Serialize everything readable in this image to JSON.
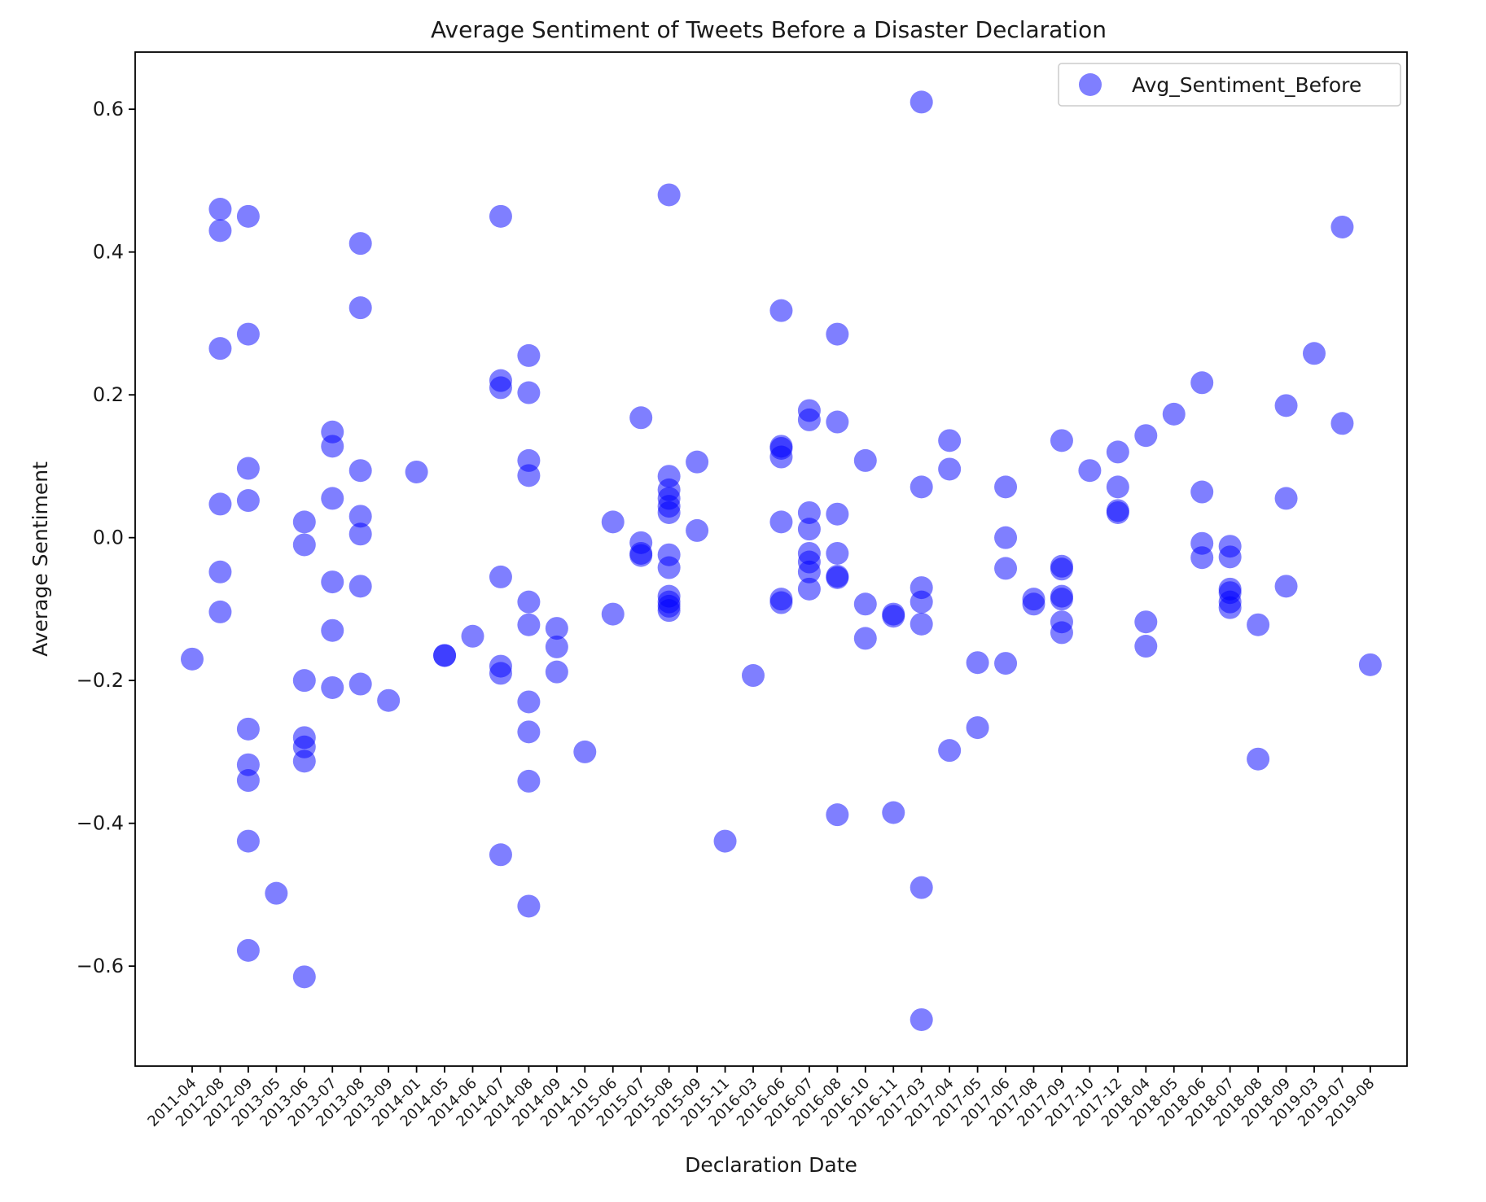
{
  "chart_data": {
    "type": "scatter",
    "title": "Average Sentiment of Tweets Before a Disaster Declaration",
    "xlabel": "Declaration Date",
    "ylabel": "Average Sentiment",
    "ylim": [
      -0.74,
      0.68
    ],
    "grid": false,
    "legend_position": "top-right",
    "yticks": [
      -0.6,
      -0.4,
      -0.2,
      0.0,
      0.2,
      0.4,
      0.6
    ],
    "ytick_labels": [
      "−0.6",
      "−0.4",
      "−0.2",
      "0.0",
      "0.2",
      "0.4",
      "0.6"
    ],
    "categories": [
      "2011-04",
      "2012-08",
      "2012-09",
      "2013-05",
      "2013-06",
      "2013-07",
      "2013-08",
      "2013-09",
      "2014-01",
      "2014-05",
      "2014-06",
      "2014-07",
      "2014-08",
      "2014-09",
      "2014-10",
      "2015-06",
      "2015-07",
      "2015-08",
      "2015-09",
      "2015-11",
      "2016-03",
      "2016-06",
      "2016-07",
      "2016-08",
      "2016-10",
      "2016-11",
      "2017-03",
      "2017-04",
      "2017-05",
      "2017-06",
      "2017-08",
      "2017-09",
      "2017-10",
      "2017-12",
      "2018-04",
      "2018-05",
      "2018-06",
      "2018-07",
      "2018-08",
      "2018-09",
      "2019-03",
      "2019-07",
      "2019-08"
    ],
    "series": [
      {
        "name": "Avg_Sentiment_Before",
        "color": "#0000ff",
        "marker": "circle",
        "alpha": 0.5,
        "points": [
          [
            "2011-04",
            -0.17
          ],
          [
            "2012-08",
            0.46
          ],
          [
            "2012-08",
            0.43
          ],
          [
            "2012-08",
            0.265
          ],
          [
            "2012-08",
            0.047
          ],
          [
            "2012-08",
            -0.048
          ],
          [
            "2012-08",
            -0.104
          ],
          [
            "2012-09",
            0.45
          ],
          [
            "2012-09",
            0.285
          ],
          [
            "2012-09",
            0.097
          ],
          [
            "2012-09",
            0.052
          ],
          [
            "2012-09",
            -0.268
          ],
          [
            "2012-09",
            -0.318
          ],
          [
            "2012-09",
            -0.34
          ],
          [
            "2012-09",
            -0.425
          ],
          [
            "2012-09",
            -0.578
          ],
          [
            "2013-05",
            -0.498
          ],
          [
            "2013-06",
            0.022
          ],
          [
            "2013-06",
            -0.01
          ],
          [
            "2013-06",
            -0.2
          ],
          [
            "2013-06",
            -0.28
          ],
          [
            "2013-06",
            -0.293
          ],
          [
            "2013-06",
            -0.313
          ],
          [
            "2013-06",
            -0.615
          ],
          [
            "2013-07",
            0.148
          ],
          [
            "2013-07",
            0.128
          ],
          [
            "2013-07",
            0.055
          ],
          [
            "2013-07",
            -0.062
          ],
          [
            "2013-07",
            -0.13
          ],
          [
            "2013-07",
            -0.21
          ],
          [
            "2013-08",
            0.412
          ],
          [
            "2013-08",
            0.322
          ],
          [
            "2013-08",
            0.094
          ],
          [
            "2013-08",
            0.03
          ],
          [
            "2013-08",
            0.005
          ],
          [
            "2013-08",
            -0.068
          ],
          [
            "2013-08",
            -0.205
          ],
          [
            "2013-09",
            -0.228
          ],
          [
            "2014-01",
            0.092
          ],
          [
            "2014-05",
            -0.165
          ],
          [
            "2014-05",
            -0.165
          ],
          [
            "2014-06",
            -0.138
          ],
          [
            "2014-07",
            0.45
          ],
          [
            "2014-07",
            0.22
          ],
          [
            "2014-07",
            0.21
          ],
          [
            "2014-07",
            -0.055
          ],
          [
            "2014-07",
            -0.18
          ],
          [
            "2014-07",
            -0.19
          ],
          [
            "2014-07",
            -0.444
          ],
          [
            "2014-08",
            0.255
          ],
          [
            "2014-08",
            0.203
          ],
          [
            "2014-08",
            0.108
          ],
          [
            "2014-08",
            0.087
          ],
          [
            "2014-08",
            -0.09
          ],
          [
            "2014-08",
            -0.122
          ],
          [
            "2014-08",
            -0.23
          ],
          [
            "2014-08",
            -0.272
          ],
          [
            "2014-08",
            -0.341
          ],
          [
            "2014-08",
            -0.516
          ],
          [
            "2014-09",
            -0.127
          ],
          [
            "2014-09",
            -0.153
          ],
          [
            "2014-09",
            -0.188
          ],
          [
            "2014-10",
            -0.3
          ],
          [
            "2015-06",
            0.022
          ],
          [
            "2015-06",
            -0.107
          ],
          [
            "2015-07",
            0.168
          ],
          [
            "2015-07",
            -0.007
          ],
          [
            "2015-07",
            -0.022
          ],
          [
            "2015-07",
            -0.025
          ],
          [
            "2015-08",
            0.48
          ],
          [
            "2015-08",
            0.086
          ],
          [
            "2015-08",
            0.067
          ],
          [
            "2015-08",
            0.055
          ],
          [
            "2015-08",
            0.044
          ],
          [
            "2015-08",
            0.035
          ],
          [
            "2015-08",
            -0.024
          ],
          [
            "2015-08",
            -0.042
          ],
          [
            "2015-08",
            -0.082
          ],
          [
            "2015-08",
            -0.09
          ],
          [
            "2015-08",
            -0.096
          ],
          [
            "2015-08",
            -0.102
          ],
          [
            "2015-09",
            0.106
          ],
          [
            "2015-09",
            0.01
          ],
          [
            "2015-11",
            -0.425
          ],
          [
            "2016-03",
            -0.193
          ],
          [
            "2016-06",
            0.318
          ],
          [
            "2016-06",
            0.128
          ],
          [
            "2016-06",
            0.125
          ],
          [
            "2016-06",
            0.113
          ],
          [
            "2016-06",
            0.022
          ],
          [
            "2016-06",
            -0.086
          ],
          [
            "2016-06",
            -0.091
          ],
          [
            "2016-07",
            0.178
          ],
          [
            "2016-07",
            0.165
          ],
          [
            "2016-07",
            0.035
          ],
          [
            "2016-07",
            0.012
          ],
          [
            "2016-07",
            -0.022
          ],
          [
            "2016-07",
            -0.034
          ],
          [
            "2016-07",
            -0.048
          ],
          [
            "2016-07",
            -0.072
          ],
          [
            "2016-08",
            0.285
          ],
          [
            "2016-08",
            0.162
          ],
          [
            "2016-08",
            0.033
          ],
          [
            "2016-08",
            -0.022
          ],
          [
            "2016-08",
            -0.054
          ],
          [
            "2016-08",
            -0.056
          ],
          [
            "2016-08",
            -0.388
          ],
          [
            "2016-10",
            0.108
          ],
          [
            "2016-10",
            -0.093
          ],
          [
            "2016-10",
            -0.141
          ],
          [
            "2016-11",
            -0.107
          ],
          [
            "2016-11",
            -0.11
          ],
          [
            "2016-11",
            -0.385
          ],
          [
            "2017-03",
            0.61
          ],
          [
            "2017-03",
            0.071
          ],
          [
            "2017-03",
            -0.07
          ],
          [
            "2017-03",
            -0.09
          ],
          [
            "2017-03",
            -0.121
          ],
          [
            "2017-03",
            -0.49
          ],
          [
            "2017-03",
            -0.675
          ],
          [
            "2017-04",
            0.136
          ],
          [
            "2017-04",
            0.096
          ],
          [
            "2017-04",
            -0.298
          ],
          [
            "2017-05",
            -0.175
          ],
          [
            "2017-05",
            -0.266
          ],
          [
            "2017-06",
            0.071
          ],
          [
            "2017-06",
            0.0
          ],
          [
            "2017-06",
            -0.043
          ],
          [
            "2017-06",
            -0.176
          ],
          [
            "2017-08",
            -0.086
          ],
          [
            "2017-08",
            -0.093
          ],
          [
            "2017-09",
            0.136
          ],
          [
            "2017-09",
            -0.04
          ],
          [
            "2017-09",
            -0.044
          ],
          [
            "2017-09",
            -0.082
          ],
          [
            "2017-09",
            -0.086
          ],
          [
            "2017-09",
            -0.118
          ],
          [
            "2017-09",
            -0.133
          ],
          [
            "2017-10",
            0.094
          ],
          [
            "2017-12",
            0.12
          ],
          [
            "2017-12",
            0.071
          ],
          [
            "2017-12",
            0.038
          ],
          [
            "2017-12",
            0.035
          ],
          [
            "2018-04",
            0.143
          ],
          [
            "2018-04",
            -0.118
          ],
          [
            "2018-04",
            -0.152
          ],
          [
            "2018-05",
            0.173
          ],
          [
            "2018-06",
            0.217
          ],
          [
            "2018-06",
            0.064
          ],
          [
            "2018-06",
            -0.008
          ],
          [
            "2018-06",
            -0.028
          ],
          [
            "2018-07",
            -0.012
          ],
          [
            "2018-07",
            -0.027
          ],
          [
            "2018-07",
            -0.072
          ],
          [
            "2018-07",
            -0.077
          ],
          [
            "2018-07",
            -0.09
          ],
          [
            "2018-07",
            -0.098
          ],
          [
            "2018-08",
            -0.122
          ],
          [
            "2018-08",
            -0.31
          ],
          [
            "2018-09",
            0.185
          ],
          [
            "2018-09",
            0.055
          ],
          [
            "2018-09",
            -0.068
          ],
          [
            "2019-03",
            0.258
          ],
          [
            "2019-07",
            0.435
          ],
          [
            "2019-07",
            0.16
          ],
          [
            "2019-08",
            -0.178
          ]
        ]
      }
    ]
  }
}
